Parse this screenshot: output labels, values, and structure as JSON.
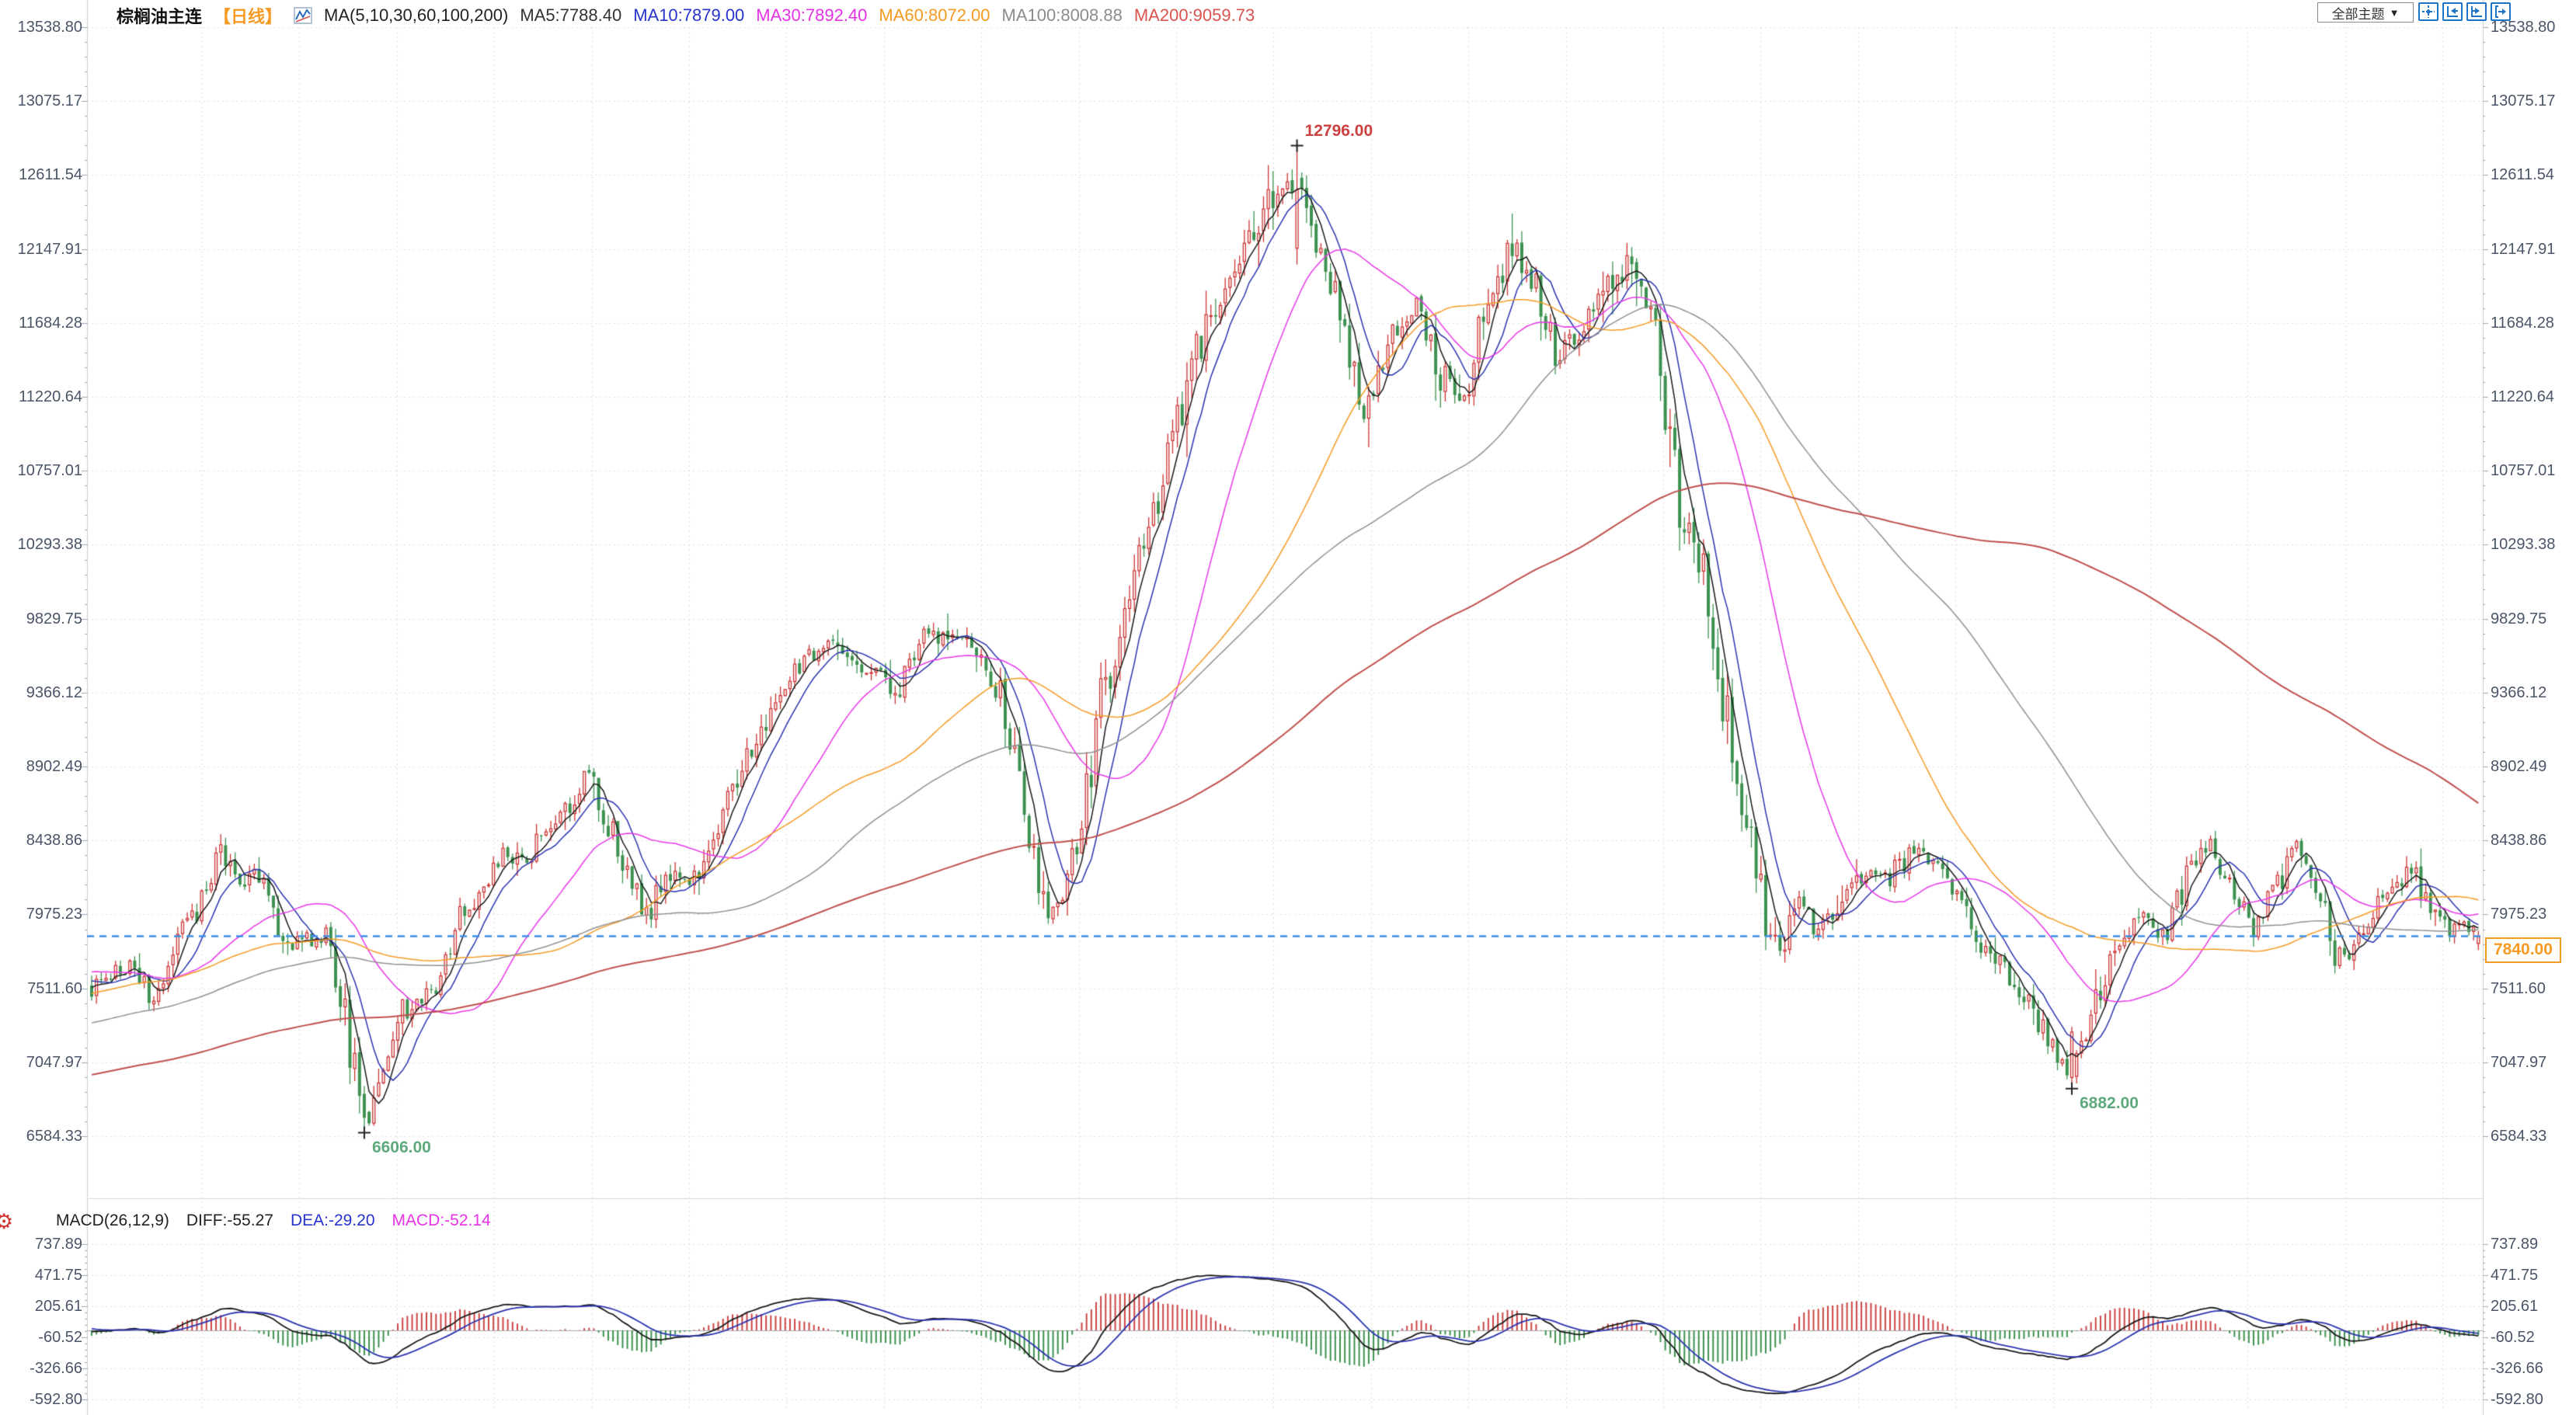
{
  "header": {
    "instrument": "棕榈油主连",
    "period_tag": "【日线】",
    "ma_params_label": "MA(5,10,30,60,100,200)",
    "ma_values": [
      {
        "label": "MA5:7788.40",
        "color": "#333333"
      },
      {
        "label": "MA10:7879.00",
        "color": "#2733cc"
      },
      {
        "label": "MA30:7892.40",
        "color": "#e433e4"
      },
      {
        "label": "MA60:8072.00",
        "color": "#f59a23"
      },
      {
        "label": "MA100:8008.88",
        "color": "#8c8c8c"
      },
      {
        "label": "MA200:9059.73",
        "color": "#d9534f"
      }
    ]
  },
  "toolbar": {
    "theme_dropdown_label": "全部主题",
    "dropdown_arrow": "▼",
    "buttons": [
      "pan-tool",
      "reset-x-axis",
      "reset-y-axis",
      "shift-right"
    ]
  },
  "macd_panel": {
    "label": "MACD(26,12,9)",
    "diff_label": "DIFF:-55.27",
    "dea_label": "DEA:-29.20",
    "macd_label": "MACD:-52.14",
    "diff_color": "#222222",
    "dea_color": "#2733cc",
    "macd_color": "#e833e8"
  },
  "last_price_label": "7840.00",
  "chart_data": {
    "type": "candlestick",
    "title": "棕榈油主连 日线 (Palm Oil main continuous, daily)",
    "bars": 500,
    "price_axis_ticks": [
      "13538.80",
      "13075.17",
      "12611.54",
      "12147.91",
      "11684.28",
      "11220.64",
      "10757.01",
      "10293.38",
      "9829.75",
      "9366.12",
      "8902.49",
      "8438.86",
      "7975.23",
      "7511.60",
      "7047.97",
      "6584.33"
    ],
    "price_axis_top": 13538.8,
    "price_axis_step": 463.633,
    "last_price": 7840.0,
    "ma_periods": [
      5,
      10,
      30,
      60,
      100,
      200
    ],
    "ma_line_colors": [
      "#1a1a1a",
      "#2b35b0",
      "#e838e8",
      "#f59a23",
      "#909090",
      "#c0504d"
    ],
    "up_color": "#cc3333",
    "down_color": "#3d9150",
    "last_price_line_color": "#3b8ee8",
    "grid_color": "#dcdcdc",
    "axis_text_color": "#4a5568",
    "price_path_anchors": [
      [
        0,
        7500
      ],
      [
        8,
        7660
      ],
      [
        13,
        7420
      ],
      [
        20,
        7900
      ],
      [
        27,
        8330
      ],
      [
        31,
        8150
      ],
      [
        34,
        8300
      ],
      [
        41,
        7780
      ],
      [
        49,
        7850
      ],
      [
        53,
        7300
      ],
      [
        57,
        6680
      ],
      [
        60,
        6950
      ],
      [
        65,
        7350
      ],
      [
        72,
        7520
      ],
      [
        78,
        8000
      ],
      [
        85,
        8350
      ],
      [
        91,
        8330
      ],
      [
        98,
        8600
      ],
      [
        104,
        8850
      ],
      [
        111,
        8320
      ],
      [
        116,
        7950
      ],
      [
        122,
        8300
      ],
      [
        127,
        8150
      ],
      [
        135,
        8800
      ],
      [
        143,
        9350
      ],
      [
        150,
        9600
      ],
      [
        156,
        9700
      ],
      [
        161,
        9550
      ],
      [
        168,
        9380
      ],
      [
        174,
        9700
      ],
      [
        181,
        9750
      ],
      [
        186,
        9600
      ],
      [
        190,
        9350
      ],
      [
        195,
        8650
      ],
      [
        199,
        7950
      ],
      [
        203,
        8150
      ],
      [
        207,
        8550
      ],
      [
        211,
        9300
      ],
      [
        216,
        9900
      ],
      [
        221,
        10400
      ],
      [
        226,
        10900
      ],
      [
        231,
        11500
      ],
      [
        236,
        11900
      ],
      [
        241,
        12150
      ],
      [
        246,
        12450
      ],
      [
        252,
        12550
      ],
      [
        255,
        12250
      ],
      [
        260,
        11900
      ],
      [
        266,
        11080
      ],
      [
        272,
        11600
      ],
      [
        277,
        11830
      ],
      [
        282,
        11380
      ],
      [
        287,
        11230
      ],
      [
        292,
        11800
      ],
      [
        297,
        12150
      ],
      [
        302,
        11900
      ],
      [
        306,
        11450
      ],
      [
        311,
        11650
      ],
      [
        316,
        11880
      ],
      [
        321,
        12050
      ],
      [
        327,
        11700
      ],
      [
        332,
        10600
      ],
      [
        337,
        10100
      ],
      [
        341,
        9350
      ],
      [
        346,
        8600
      ],
      [
        352,
        7700
      ],
      [
        356,
        8050
      ],
      [
        361,
        7880
      ],
      [
        366,
        8100
      ],
      [
        371,
        8250
      ],
      [
        376,
        8200
      ],
      [
        381,
        8400
      ],
      [
        386,
        8250
      ],
      [
        391,
        8100
      ],
      [
        395,
        7820
      ],
      [
        400,
        7600
      ],
      [
        406,
        7360
      ],
      [
        414,
        6980
      ],
      [
        418,
        7350
      ],
      [
        423,
        7800
      ],
      [
        428,
        7950
      ],
      [
        433,
        7820
      ],
      [
        438,
        8200
      ],
      [
        442,
        8430
      ],
      [
        447,
        8200
      ],
      [
        452,
        7920
      ],
      [
        457,
        8150
      ],
      [
        461,
        8380
      ],
      [
        466,
        8100
      ],
      [
        470,
        7620
      ],
      [
        475,
        7900
      ],
      [
        480,
        8100
      ],
      [
        485,
        8250
      ],
      [
        490,
        8010
      ],
      [
        494,
        7860
      ],
      [
        497,
        7900
      ],
      [
        499,
        7840
      ]
    ],
    "warmup_anchors": [
      [
        -210,
        6350
      ],
      [
        -170,
        6520
      ],
      [
        -130,
        6760
      ],
      [
        -95,
        6920
      ],
      [
        -70,
        7060
      ],
      [
        -50,
        7260
      ],
      [
        -35,
        7460
      ],
      [
        -20,
        7700
      ],
      [
        -10,
        7620
      ],
      [
        0,
        7500
      ]
    ],
    "extremes": [
      {
        "bar": 252,
        "type": "high",
        "price": 12796,
        "label": "12796.00",
        "color": "#cc4040"
      },
      {
        "bar": 57,
        "type": "low",
        "price": 6606,
        "label": "6606.00",
        "color": "#5faa7d"
      },
      {
        "bar": 414,
        "type": "low",
        "price": 6882,
        "label": "6882.00",
        "color": "#5faa7d"
      }
    ],
    "macd": {
      "params": [
        26,
        12,
        9
      ],
      "diff": -55.27,
      "dea": -29.2,
      "macd": -52.14,
      "axis_ticks": [
        "737.89",
        "471.75",
        "205.61",
        "-60.52",
        "-326.66",
        "-592.80"
      ],
      "diff_line_color": "#1a1a1a",
      "dea_line_color": "#2b35b0",
      "hist_up_color": "#cc4444",
      "hist_down_color": "#3d9150"
    }
  }
}
